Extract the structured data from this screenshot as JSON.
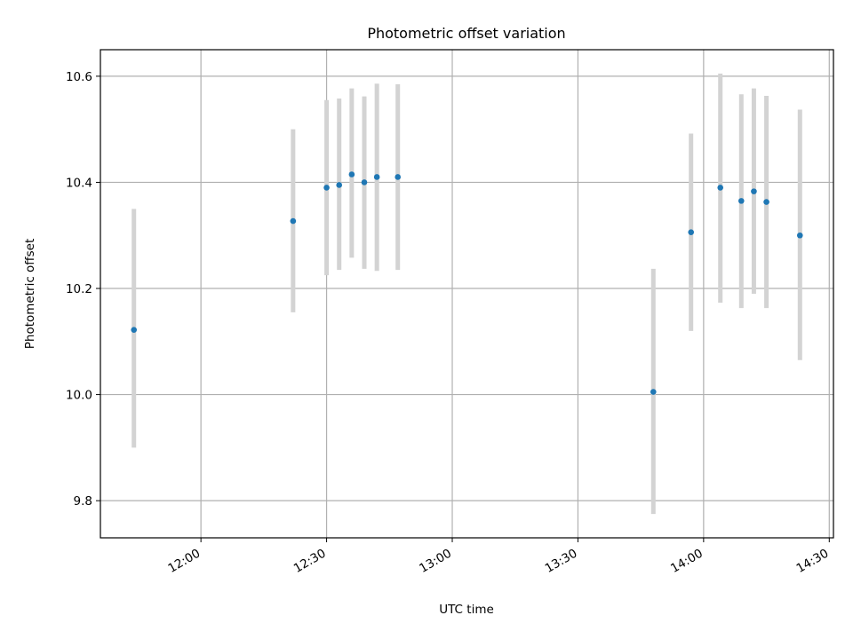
{
  "chart_data": {
    "type": "scatter",
    "title": "Photometric offset variation",
    "xlabel": "UTC time",
    "ylabel": "Photometric offset",
    "x_ticks": [
      "12:00",
      "12:30",
      "13:00",
      "13:30",
      "14:00",
      "14:30"
    ],
    "y_ticks": [
      "9.8",
      "10.0",
      "10.2",
      "10.4",
      "10.6"
    ],
    "xlim": [
      "11:36",
      "14:31"
    ],
    "ylim": [
      9.73,
      10.65
    ],
    "grid": true,
    "colors": {
      "point": "#1f77b4",
      "errorbar": "#d3d3d3",
      "grid": "#b0b0b0",
      "axes": "#000000"
    },
    "points": [
      {
        "x": "11:44",
        "y": 10.122,
        "err_low": 9.9,
        "err_high": 10.35
      },
      {
        "x": "12:22",
        "y": 10.327,
        "err_low": 10.155,
        "err_high": 10.5
      },
      {
        "x": "12:30",
        "y": 10.39,
        "err_low": 10.225,
        "err_high": 10.555
      },
      {
        "x": "12:33",
        "y": 10.395,
        "err_low": 10.235,
        "err_high": 10.558
      },
      {
        "x": "12:36",
        "y": 10.415,
        "err_low": 10.258,
        "err_high": 10.577
      },
      {
        "x": "12:39",
        "y": 10.4,
        "err_low": 10.237,
        "err_high": 10.562
      },
      {
        "x": "12:42",
        "y": 10.41,
        "err_low": 10.233,
        "err_high": 10.586
      },
      {
        "x": "12:47",
        "y": 10.41,
        "err_low": 10.235,
        "err_high": 10.585
      },
      {
        "x": "13:48",
        "y": 10.005,
        "err_low": 9.775,
        "err_high": 10.237
      },
      {
        "x": "13:57",
        "y": 10.306,
        "err_low": 10.12,
        "err_high": 10.492
      },
      {
        "x": "14:04",
        "y": 10.39,
        "err_low": 10.173,
        "err_high": 10.605
      },
      {
        "x": "14:09",
        "y": 10.365,
        "err_low": 10.163,
        "err_high": 10.566
      },
      {
        "x": "14:12",
        "y": 10.383,
        "err_low": 10.19,
        "err_high": 10.577
      },
      {
        "x": "14:15",
        "y": 10.363,
        "err_low": 10.163,
        "err_high": 10.563
      },
      {
        "x": "14:23",
        "y": 10.3,
        "err_low": 10.065,
        "err_high": 10.537
      }
    ]
  }
}
